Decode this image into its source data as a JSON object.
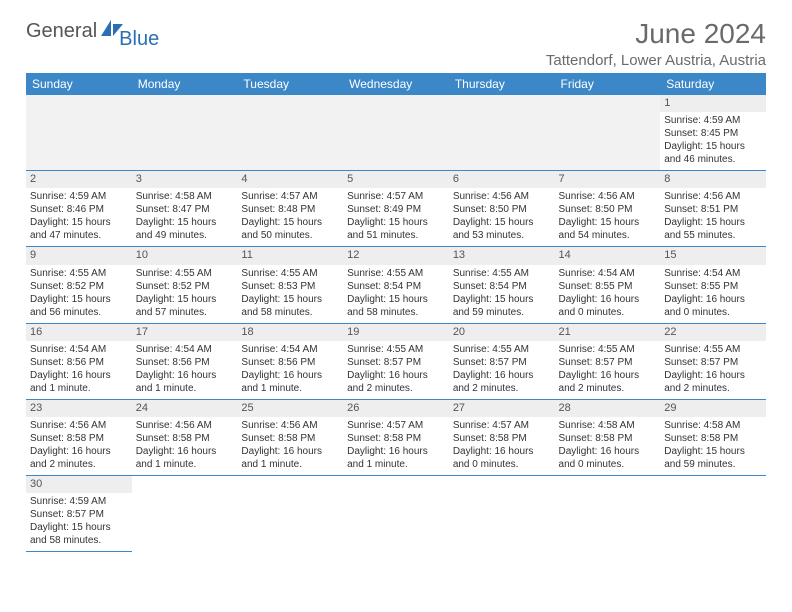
{
  "logo": {
    "text1": "General",
    "text2": "Blue"
  },
  "title": "June 2024",
  "location": "Tattendorf, Lower Austria, Austria",
  "colors": {
    "header_bg": "#3b87c8",
    "header_text": "#ffffff",
    "daynum_bg": "#eeeeee",
    "cell_border": "#3b87c8",
    "text": "#333333",
    "title_text": "#6a6a6a",
    "logo_accent": "#2a6fb5"
  },
  "weekdays": [
    "Sunday",
    "Monday",
    "Tuesday",
    "Wednesday",
    "Thursday",
    "Friday",
    "Saturday"
  ],
  "leading_blanks": 6,
  "days": [
    {
      "n": 1,
      "sunrise": "4:59 AM",
      "sunset": "8:45 PM",
      "daylight": "15 hours and 46 minutes."
    },
    {
      "n": 2,
      "sunrise": "4:59 AM",
      "sunset": "8:46 PM",
      "daylight": "15 hours and 47 minutes."
    },
    {
      "n": 3,
      "sunrise": "4:58 AM",
      "sunset": "8:47 PM",
      "daylight": "15 hours and 49 minutes."
    },
    {
      "n": 4,
      "sunrise": "4:57 AM",
      "sunset": "8:48 PM",
      "daylight": "15 hours and 50 minutes."
    },
    {
      "n": 5,
      "sunrise": "4:57 AM",
      "sunset": "8:49 PM",
      "daylight": "15 hours and 51 minutes."
    },
    {
      "n": 6,
      "sunrise": "4:56 AM",
      "sunset": "8:50 PM",
      "daylight": "15 hours and 53 minutes."
    },
    {
      "n": 7,
      "sunrise": "4:56 AM",
      "sunset": "8:50 PM",
      "daylight": "15 hours and 54 minutes."
    },
    {
      "n": 8,
      "sunrise": "4:56 AM",
      "sunset": "8:51 PM",
      "daylight": "15 hours and 55 minutes."
    },
    {
      "n": 9,
      "sunrise": "4:55 AM",
      "sunset": "8:52 PM",
      "daylight": "15 hours and 56 minutes."
    },
    {
      "n": 10,
      "sunrise": "4:55 AM",
      "sunset": "8:52 PM",
      "daylight": "15 hours and 57 minutes."
    },
    {
      "n": 11,
      "sunrise": "4:55 AM",
      "sunset": "8:53 PM",
      "daylight": "15 hours and 58 minutes."
    },
    {
      "n": 12,
      "sunrise": "4:55 AM",
      "sunset": "8:54 PM",
      "daylight": "15 hours and 58 minutes."
    },
    {
      "n": 13,
      "sunrise": "4:55 AM",
      "sunset": "8:54 PM",
      "daylight": "15 hours and 59 minutes."
    },
    {
      "n": 14,
      "sunrise": "4:54 AM",
      "sunset": "8:55 PM",
      "daylight": "16 hours and 0 minutes."
    },
    {
      "n": 15,
      "sunrise": "4:54 AM",
      "sunset": "8:55 PM",
      "daylight": "16 hours and 0 minutes."
    },
    {
      "n": 16,
      "sunrise": "4:54 AM",
      "sunset": "8:56 PM",
      "daylight": "16 hours and 1 minute."
    },
    {
      "n": 17,
      "sunrise": "4:54 AM",
      "sunset": "8:56 PM",
      "daylight": "16 hours and 1 minute."
    },
    {
      "n": 18,
      "sunrise": "4:54 AM",
      "sunset": "8:56 PM",
      "daylight": "16 hours and 1 minute."
    },
    {
      "n": 19,
      "sunrise": "4:55 AM",
      "sunset": "8:57 PM",
      "daylight": "16 hours and 2 minutes."
    },
    {
      "n": 20,
      "sunrise": "4:55 AM",
      "sunset": "8:57 PM",
      "daylight": "16 hours and 2 minutes."
    },
    {
      "n": 21,
      "sunrise": "4:55 AM",
      "sunset": "8:57 PM",
      "daylight": "16 hours and 2 minutes."
    },
    {
      "n": 22,
      "sunrise": "4:55 AM",
      "sunset": "8:57 PM",
      "daylight": "16 hours and 2 minutes."
    },
    {
      "n": 23,
      "sunrise": "4:56 AM",
      "sunset": "8:58 PM",
      "daylight": "16 hours and 2 minutes."
    },
    {
      "n": 24,
      "sunrise": "4:56 AM",
      "sunset": "8:58 PM",
      "daylight": "16 hours and 1 minute."
    },
    {
      "n": 25,
      "sunrise": "4:56 AM",
      "sunset": "8:58 PM",
      "daylight": "16 hours and 1 minute."
    },
    {
      "n": 26,
      "sunrise": "4:57 AM",
      "sunset": "8:58 PM",
      "daylight": "16 hours and 1 minute."
    },
    {
      "n": 27,
      "sunrise": "4:57 AM",
      "sunset": "8:58 PM",
      "daylight": "16 hours and 0 minutes."
    },
    {
      "n": 28,
      "sunrise": "4:58 AM",
      "sunset": "8:58 PM",
      "daylight": "16 hours and 0 minutes."
    },
    {
      "n": 29,
      "sunrise": "4:58 AM",
      "sunset": "8:58 PM",
      "daylight": "15 hours and 59 minutes."
    },
    {
      "n": 30,
      "sunrise": "4:59 AM",
      "sunset": "8:57 PM",
      "daylight": "15 hours and 58 minutes."
    }
  ],
  "labels": {
    "sunrise": "Sunrise:",
    "sunset": "Sunset:",
    "daylight": "Daylight:"
  }
}
